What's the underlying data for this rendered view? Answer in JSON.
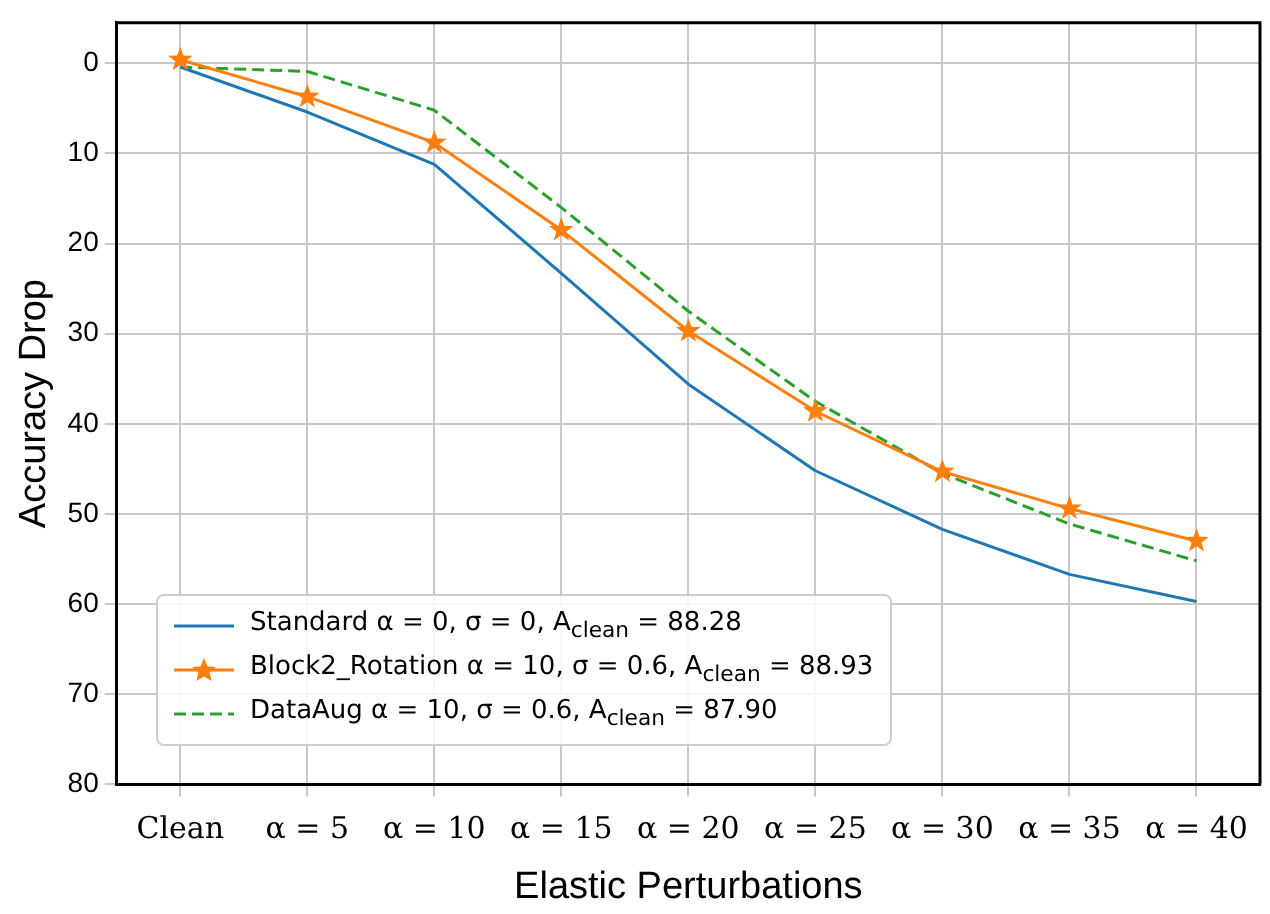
{
  "chart_data": {
    "type": "line",
    "xlabel": "Elastic Perturbations",
    "ylabel": "Accuracy Drop",
    "categories": [
      "Clean",
      "α = 5",
      "α = 10",
      "α = 15",
      "α = 20",
      "α = 25",
      "α = 30",
      "α = 35",
      "α = 40"
    ],
    "series": [
      {
        "name": "Standard α = 0, σ = 0, A$_{clean}$ = 88.28",
        "color": "#1f77b4",
        "marker": "none",
        "line_style": "solid",
        "values": [
          0.4,
          5.4,
          11.2,
          23.3,
          35.6,
          45.2,
          51.7,
          56.7,
          59.7
        ]
      },
      {
        "name": "Block2_Rotation α = 10, σ = 0.6, A$_{clean}$ = 88.93",
        "color": "#ff7f0e",
        "marker": "star",
        "line_style": "solid",
        "values": [
          -0.4,
          3.7,
          8.8,
          18.5,
          29.7,
          38.6,
          45.3,
          49.4,
          53.0
        ]
      },
      {
        "name": "DataAug α = 10, σ = 0.6, A$_{clean}$ = 87.90",
        "color": "#2ca02c",
        "marker": "none",
        "line_style": "dashed",
        "values": [
          0.4,
          0.9,
          5.2,
          16.0,
          27.5,
          37.5,
          45.5,
          51.1,
          55.2
        ]
      }
    ],
    "ylim": [
      80,
      -4.5
    ],
    "yticks": [
      0,
      10,
      20,
      30,
      40,
      50,
      60,
      70,
      80
    ],
    "grid": true,
    "legend": "bottom left"
  }
}
